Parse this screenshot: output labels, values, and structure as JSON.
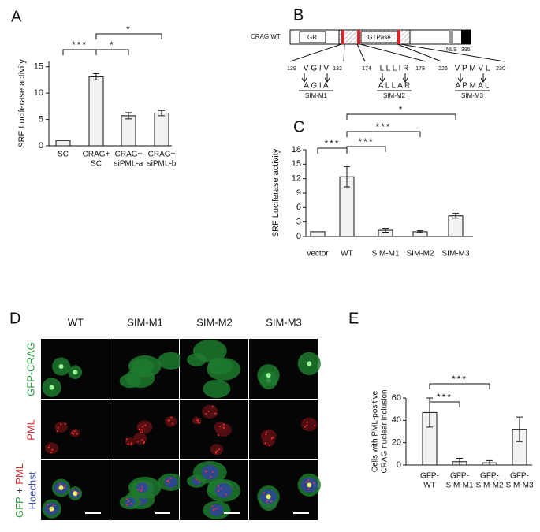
{
  "panel_labels": [
    "A",
    "B",
    "C",
    "D",
    "E"
  ],
  "chart_data": [
    {
      "type": "bar",
      "ylabel": "SRF Luciferase activity",
      "categories": [
        [
          "SC"
        ],
        [
          "CRAG+",
          "SC"
        ],
        [
          "CRAG+",
          "siPML-a"
        ],
        [
          "CRAG+",
          "siPML-b"
        ]
      ],
      "values": [
        1,
        13.1,
        5.7,
        6.2
      ],
      "errors": [
        0,
        0.6,
        0.6,
        0.5
      ],
      "ylim": [
        0,
        16
      ],
      "yticks": [
        0,
        5,
        10,
        15
      ],
      "color": "#f2f2f2",
      "annotations": [
        "***",
        "*",
        "*"
      ]
    },
    {
      "type": "bar",
      "ylabel": "SRF Luciferase activity",
      "categories": [
        [
          "vector"
        ],
        [
          "WT"
        ],
        [
          "SIM-M1"
        ],
        [
          "SIM-M2"
        ],
        [
          "SIM-M3"
        ]
      ],
      "values": [
        1,
        12.4,
        1.3,
        1.0,
        4.3
      ],
      "errors": [
        0,
        2.1,
        0.4,
        0.2,
        0.5
      ],
      "ylim": [
        0,
        18
      ],
      "yticks": [
        0,
        3,
        6,
        9,
        12,
        15,
        18
      ],
      "color": "#f2f2f2",
      "annotations": [
        "***",
        "***",
        "***",
        "*"
      ]
    },
    {
      "type": "bar",
      "ylabel": [
        "Cells with  PML-positive",
        "CRAG nuclear inclusion"
      ],
      "categories": [
        [
          "GFP-",
          "WT"
        ],
        [
          "GFP-",
          "SIM-M1"
        ],
        [
          "GFP-",
          "SIM-M2"
        ],
        [
          "GFP-",
          "SIM-M3"
        ]
      ],
      "values": [
        47,
        3,
        2,
        32
      ],
      "errors": [
        13,
        3,
        2,
        11
      ],
      "ylim": [
        0,
        60
      ],
      "yticks": [
        0,
        20,
        40,
        60
      ],
      "color": "#f2f2f2",
      "annotations": [
        "***",
        "***"
      ]
    }
  ],
  "diagram": {
    "label": "CRAG WT",
    "domains": [
      "GR",
      "GTPase",
      "NLS"
    ],
    "length": "395",
    "sims": [
      {
        "start": "129",
        "wt": "V G I V",
        "end": "132",
        "mut": "A G I A",
        "name": "SIM-M1"
      },
      {
        "start": "174",
        "wt": "L L L I R",
        "end": "178",
        "mut": "A L L A R",
        "name": "SIM-M2"
      },
      {
        "start": "226",
        "wt": "V P M V L",
        "end": "230",
        "mut": "A P M A L",
        "name": "SIM-M3"
      }
    ]
  },
  "micrograph": {
    "columns": [
      "WT",
      "SIM-M1",
      "SIM-M2",
      "SIM-M3"
    ],
    "rows": [
      "GFP-CRAG",
      "PML"
    ],
    "merge": {
      "gfp": "GFP",
      "plus": "+",
      "pml": "PML",
      "hoechst": "Hoechst"
    }
  }
}
